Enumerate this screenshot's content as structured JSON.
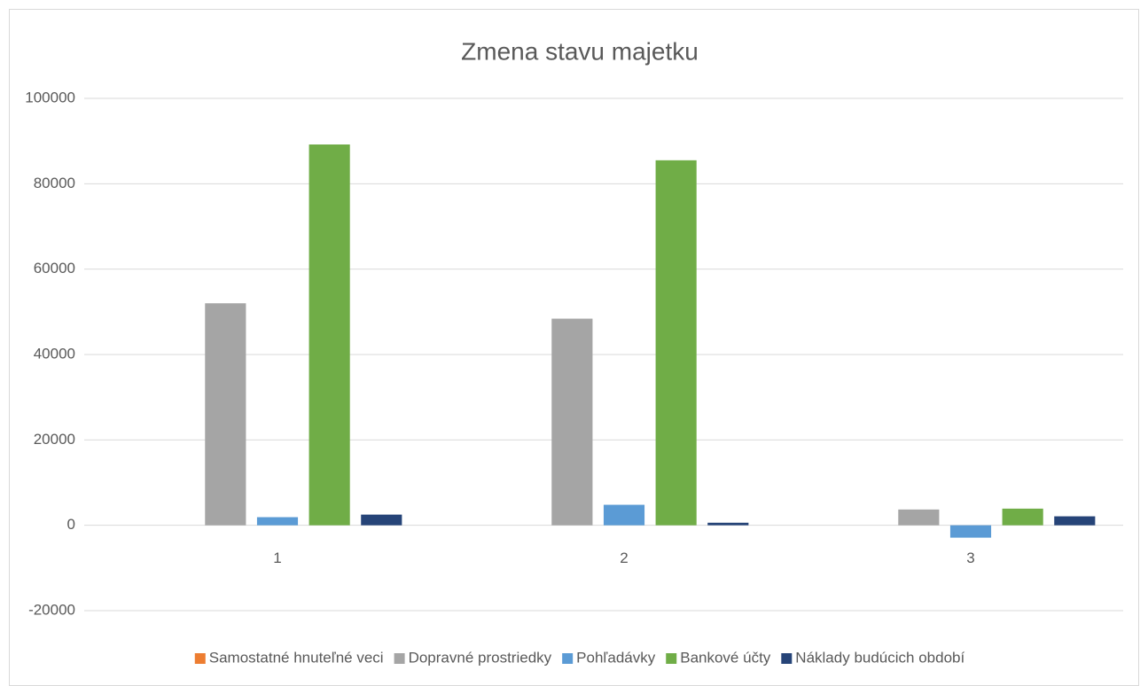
{
  "chart_data": {
    "type": "bar",
    "title": "Zmena stavu majetku",
    "categories": [
      "1",
      "2",
      "3"
    ],
    "series": [
      {
        "name": "Samostatné hnuteľné veci",
        "color": "#ed7d31",
        "values": [
          0,
          0,
          0
        ]
      },
      {
        "name": "Dopravné prostriedky",
        "color": "#a5a5a5",
        "values": [
          52000,
          48400,
          3700
        ]
      },
      {
        "name": "Pohľadávky",
        "color": "#5b9bd5",
        "values": [
          1900,
          4800,
          -2900
        ]
      },
      {
        "name": "Bankové účty",
        "color": "#70ad47",
        "values": [
          89200,
          85500,
          3900
        ]
      },
      {
        "name": "Náklady budúcich období",
        "color": "#264478",
        "values": [
          2500,
          600,
          2100
        ]
      }
    ],
    "ylim": [
      -20000,
      100000
    ],
    "yticks": [
      -20000,
      0,
      20000,
      40000,
      60000,
      80000,
      100000
    ],
    "grid": true,
    "legend": "bottom"
  }
}
